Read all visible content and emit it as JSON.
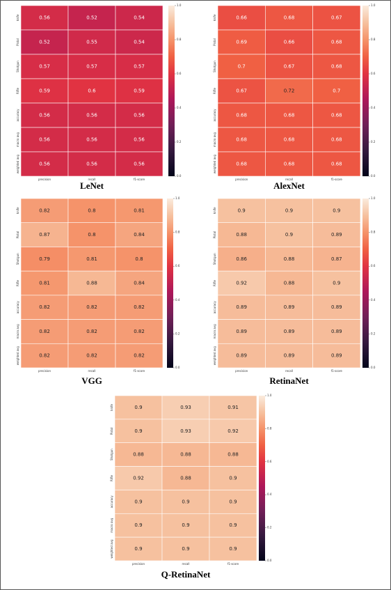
{
  "chart_data": [
    {
      "type": "heatmap",
      "title": "LeNet",
      "x": [
        "precision",
        "recall",
        "f1-score"
      ],
      "y": [
        "knife",
        "Pistol",
        "Shotgun",
        "Rifle",
        "accuracy",
        "macro avg",
        "weighted avg"
      ],
      "values": [
        [
          0.56,
          0.52,
          0.54
        ],
        [
          0.52,
          0.55,
          0.54
        ],
        [
          0.57,
          0.57,
          0.57
        ],
        [
          0.59,
          0.6,
          0.59
        ],
        [
          0.56,
          0.56,
          0.56
        ],
        [
          0.56,
          0.56,
          0.56
        ],
        [
          0.56,
          0.56,
          0.56
        ]
      ],
      "clim": [
        0,
        1
      ],
      "cticks": [
        {
          "value": 0,
          "label": "0.0"
        },
        0.2,
        0.4,
        0.6,
        0.8,
        {
          "value": 1,
          "label": "1.0"
        }
      ]
    },
    {
      "type": "heatmap",
      "title": "AlexNet",
      "x": [
        "precision",
        "recall",
        "f1-score"
      ],
      "y": [
        "knife",
        "Pistol",
        "Shotgun",
        "Rifle",
        "accuracy",
        "macro avg",
        "weighted avg"
      ],
      "values": [
        [
          0.66,
          0.68,
          0.67
        ],
        [
          0.69,
          0.66,
          0.68
        ],
        [
          0.7,
          0.67,
          0.68
        ],
        [
          0.67,
          0.72,
          0.7
        ],
        [
          0.68,
          0.68,
          0.68
        ],
        [
          0.68,
          0.68,
          0.68
        ],
        [
          0.68,
          0.68,
          0.68
        ]
      ],
      "clim": [
        0,
        1
      ],
      "cticks": [
        {
          "value": 0,
          "label": "0.0"
        },
        0.2,
        0.4,
        0.6,
        0.8,
        {
          "value": 1,
          "label": "1.0"
        }
      ]
    },
    {
      "type": "heatmap",
      "title": "VGG",
      "x": [
        "precision",
        "recall",
        "f1-score"
      ],
      "y": [
        "knife",
        "Pistol",
        "Shotgun",
        "Rifle",
        "accuracy",
        "macro avg",
        "weighted avg"
      ],
      "values": [
        [
          0.82,
          0.8,
          0.81
        ],
        [
          0.87,
          0.8,
          0.84
        ],
        [
          0.79,
          0.81,
          0.8
        ],
        [
          0.81,
          0.88,
          0.84
        ],
        [
          0.82,
          0.82,
          0.82
        ],
        [
          0.82,
          0.82,
          0.82
        ],
        [
          0.82,
          0.82,
          0.82
        ]
      ],
      "clim": [
        0,
        1
      ],
      "cticks": [
        {
          "value": 0,
          "label": "0.0"
        },
        0.2,
        0.4,
        0.6,
        0.8,
        {
          "value": 1,
          "label": "1.0"
        }
      ]
    },
    {
      "type": "heatmap",
      "title": "RetinaNet",
      "x": [
        "precision",
        "recall",
        "f1-score"
      ],
      "y": [
        "knife",
        "Pistol",
        "Shotgun",
        "Rifle",
        "accuracy",
        "macro avg",
        "weighted avg"
      ],
      "values": [
        [
          0.9,
          0.9,
          0.9
        ],
        [
          0.88,
          0.9,
          0.89
        ],
        [
          0.86,
          0.88,
          0.87
        ],
        [
          0.92,
          0.88,
          0.9
        ],
        [
          0.89,
          0.89,
          0.89
        ],
        [
          0.89,
          0.89,
          0.89
        ],
        [
          0.89,
          0.89,
          0.89
        ]
      ],
      "clim": [
        0,
        1
      ],
      "cticks": [
        {
          "value": 0,
          "label": "0.0"
        },
        0.2,
        0.4,
        0.6,
        0.8,
        {
          "value": 1,
          "label": "1.0"
        }
      ]
    },
    {
      "type": "heatmap",
      "title": "Q-RetinaNet",
      "x": [
        "precision",
        "recall",
        "f1-score"
      ],
      "y": [
        "knife",
        "Pistol",
        "Shotgun",
        "Rifle",
        "accuracy",
        "macro avg",
        "weighted avg"
      ],
      "values": [
        [
          0.9,
          0.93,
          0.91
        ],
        [
          0.9,
          0.93,
          0.92
        ],
        [
          0.88,
          0.88,
          0.88
        ],
        [
          0.92,
          0.88,
          0.9
        ],
        [
          0.9,
          0.9,
          0.9
        ],
        [
          0.9,
          0.9,
          0.9
        ],
        [
          0.9,
          0.9,
          0.9
        ]
      ],
      "clim": [
        0,
        1
      ],
      "cticks": [
        {
          "value": 0,
          "label": "0.0"
        },
        0.2,
        0.4,
        0.6,
        0.8,
        {
          "value": 1,
          "label": "1.0"
        }
      ]
    }
  ]
}
